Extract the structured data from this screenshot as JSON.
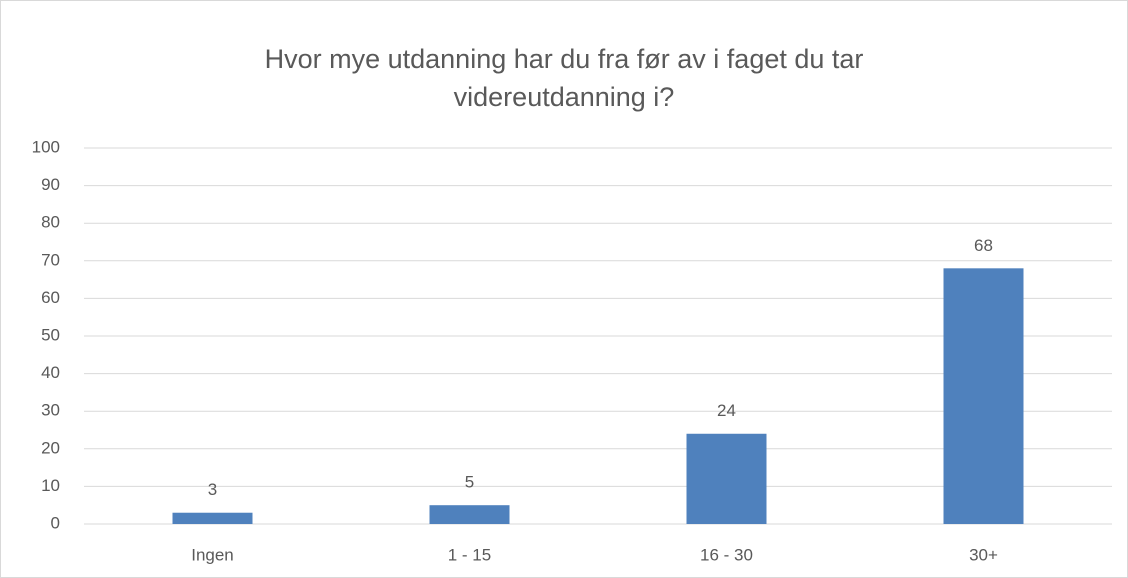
{
  "chart_data": {
    "type": "bar",
    "title": "Hvor mye utdanning har du fra før av i faget du tar videreutdanning i?",
    "categories": [
      "Ingen",
      "1 - 15",
      "16 - 30",
      "30+"
    ],
    "values": [
      3,
      5,
      24,
      68
    ],
    "color": "#4f81bd",
    "ylim": [
      0,
      100
    ],
    "yticks": [
      0,
      10,
      20,
      30,
      40,
      50,
      60,
      70,
      80,
      90,
      100
    ],
    "grid": true
  }
}
